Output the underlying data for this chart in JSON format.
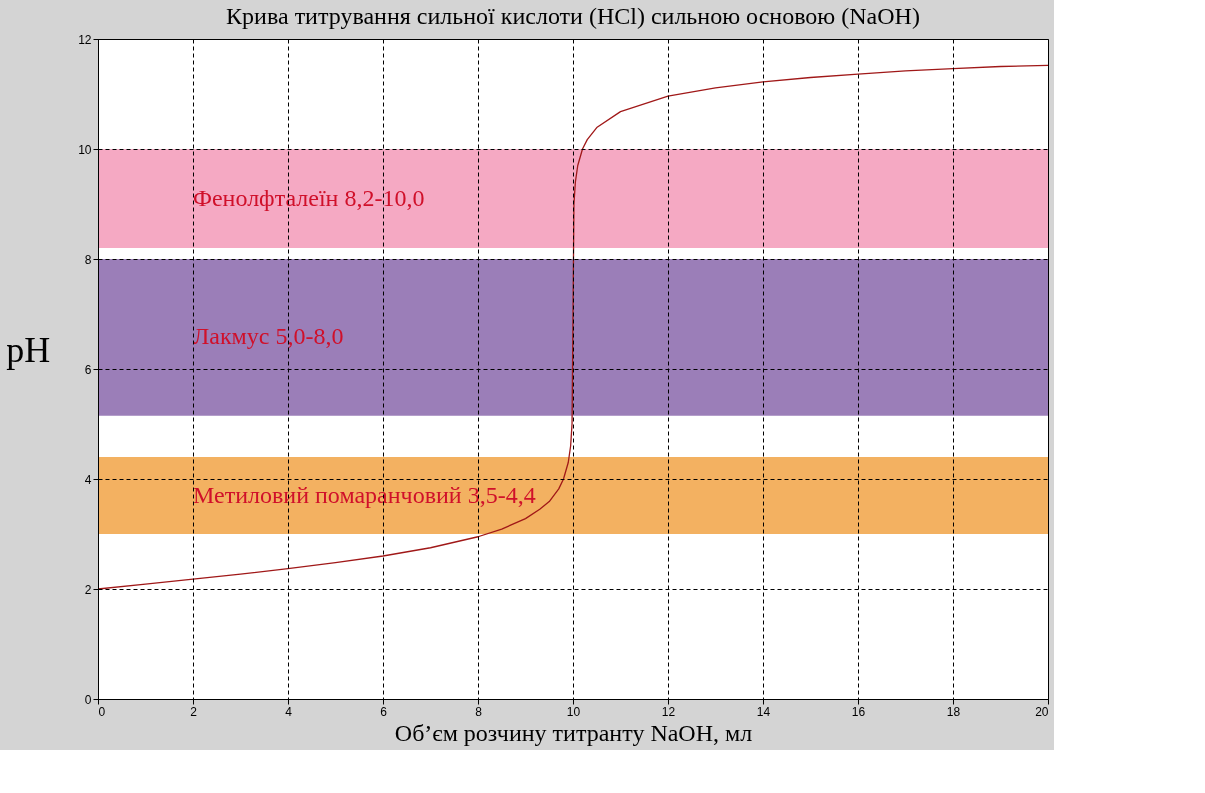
{
  "chart_data": {
    "type": "line",
    "title": "Крива титрування сильної кислоти (HCl) сильною основою (NaOH)",
    "xlabel": "Об’єм розчину титранту NaOH, мл",
    "ylabel": "pH",
    "series": [
      {
        "color": "#a01818",
        "x": [
          0,
          1,
          2,
          3,
          4,
          5,
          6,
          7,
          8,
          8.5,
          9,
          9.3,
          9.5,
          9.7,
          9.8,
          9.9,
          9.95,
          9.98,
          10,
          10.02,
          10.05,
          10.1,
          10.2,
          10.3,
          10.5,
          11,
          12,
          13,
          14,
          15,
          16,
          17,
          18,
          19,
          20
        ],
        "values": [
          2,
          2.09,
          2.18,
          2.27,
          2.37,
          2.48,
          2.6,
          2.75,
          2.95,
          3.09,
          3.28,
          3.45,
          3.59,
          3.82,
          4.0,
          4.3,
          4.6,
          5.0,
          7.0,
          9.0,
          9.4,
          9.7,
          10.0,
          10.17,
          10.39,
          10.68,
          10.96,
          11.11,
          11.22,
          11.3,
          11.36,
          11.42,
          11.46,
          11.5,
          11.52
        ]
      }
    ],
    "xlim": [
      0,
      20
    ],
    "ylim": [
      0,
      12
    ],
    "xticks": [
      0,
      2,
      4,
      6,
      8,
      10,
      12,
      14,
      16,
      18,
      20
    ],
    "yticks": [
      0,
      2,
      4,
      6,
      8,
      10,
      12
    ],
    "bands": [
      {
        "axis": "y",
        "from": 8.2,
        "to": 10.0,
        "label": "Фенолфталеїн 8,2-10,0",
        "color": "#f4a0bd"
      },
      {
        "axis": "y",
        "from": 5.15,
        "to": 8.0,
        "label": "Лакмус 5,0-8,0",
        "color": "#9070b0"
      },
      {
        "axis": "y",
        "from": 3.0,
        "to": 4.4,
        "label": "Метиловий помаранчовий 3,5-4,4",
        "color": "#f2a850"
      }
    ],
    "grid": true,
    "marker": "none",
    "line_style": "solid"
  }
}
